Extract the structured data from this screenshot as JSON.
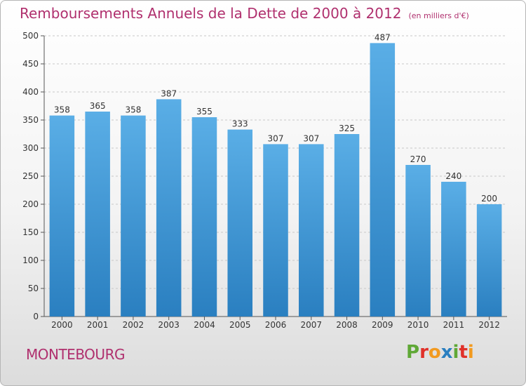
{
  "header": {
    "title": "Remboursements Annuels de la Dette de 2000 à 2012",
    "unit": "(en milliers d'€)"
  },
  "footer": {
    "commune": "MONTEBOURG",
    "logo_letters": [
      "P",
      "r",
      "o",
      "x",
      "i",
      "t",
      "i"
    ]
  },
  "colors": {
    "title": "#b0306e",
    "bar_top": "#5aaee6",
    "bar_bottom": "#2a7fc0",
    "logo": [
      "#5fa836",
      "#e0312a",
      "#f29a1f",
      "#2a7fc0",
      "#5fa836",
      "#e0312a",
      "#f29a1f"
    ]
  },
  "chart_data": {
    "type": "bar",
    "title": "Remboursements Annuels de la Dette de 2000 à 2012",
    "unit": "(en milliers d'€)",
    "categories": [
      "2000",
      "2001",
      "2002",
      "2003",
      "2004",
      "2005",
      "2006",
      "2007",
      "2008",
      "2009",
      "2010",
      "2011",
      "2012"
    ],
    "values": [
      358,
      365,
      358,
      387,
      355,
      333,
      307,
      307,
      325,
      487,
      270,
      240,
      200
    ],
    "ylim": [
      0,
      500
    ],
    "yticks": [
      0,
      50,
      100,
      150,
      200,
      250,
      300,
      350,
      400,
      450,
      500
    ],
    "grid": true,
    "data_labels": true
  }
}
